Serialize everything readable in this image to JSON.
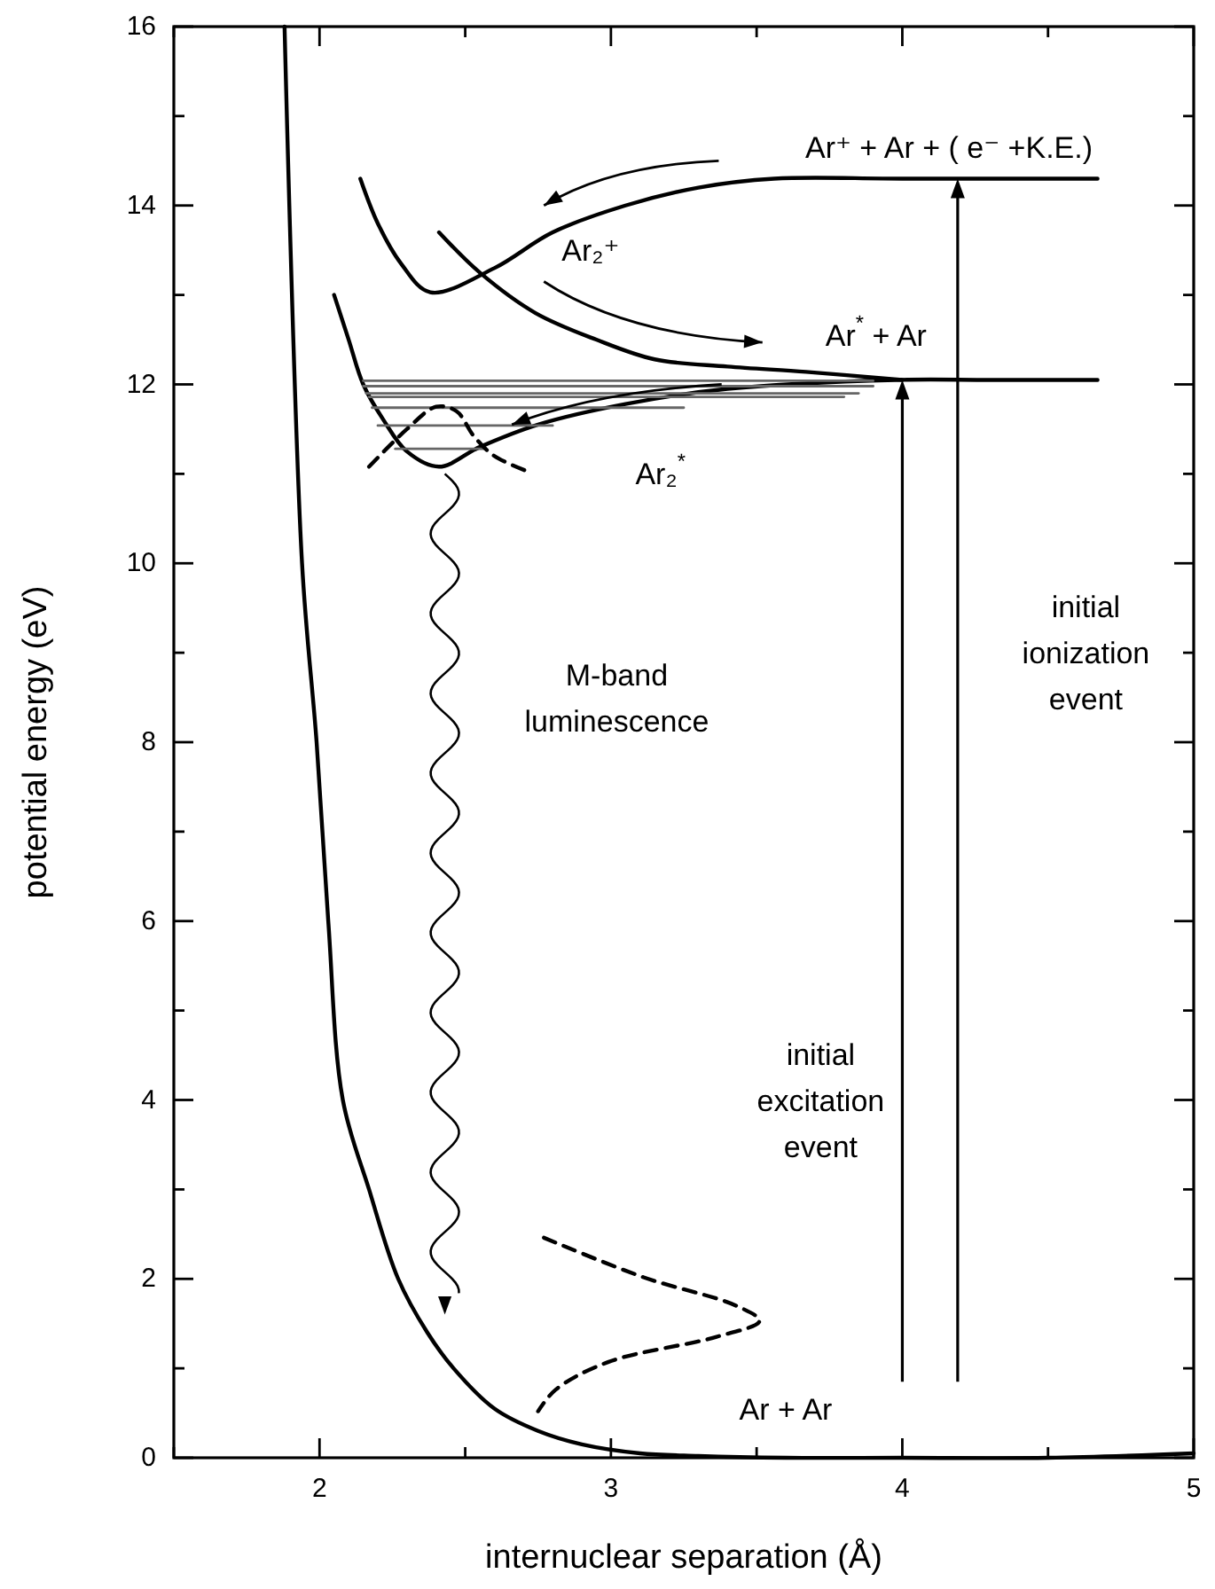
{
  "chart_data": {
    "type": "line",
    "xlabel": "internuclear separation (Å)",
    "ylabel": "potential energy (eV)",
    "xlim": [
      1.5,
      5
    ],
    "xticks": [
      {
        "value": 1.5,
        "label": null
      },
      2,
      {
        "value": 2.5,
        "label": null
      },
      3,
      {
        "value": 3.5,
        "label": null
      },
      4,
      {
        "value": 4.5,
        "label": null
      },
      5
    ],
    "ylim": [
      0,
      16
    ],
    "yticks": [
      0,
      {
        "value": 1,
        "label": null
      },
      2,
      {
        "value": 3,
        "label": null
      },
      4,
      {
        "value": 5,
        "label": null
      },
      6,
      {
        "value": 7,
        "label": null
      },
      8,
      {
        "value": 9,
        "label": null
      },
      10,
      {
        "value": 11,
        "label": null
      },
      12,
      {
        "value": 13,
        "label": null
      },
      14,
      {
        "value": 15,
        "label": null
      },
      16
    ],
    "grid": false,
    "line_style": "solid",
    "series": [
      {
        "color": "#000000",
        "x": [
          1.88,
          1.94,
          1.99,
          2.03,
          2.08,
          2.17,
          2.27,
          2.37,
          2.46,
          2.6,
          2.75,
          2.9,
          3.1,
          3.3,
          3.6,
          4.0,
          4.5,
          5.0
        ],
        "values": [
          16,
          10,
          8,
          6,
          4,
          3,
          2,
          1.4,
          1,
          0.55,
          0.3,
          0.15,
          0.05,
          0.02,
          0,
          0,
          0,
          0.05
        ]
      },
      {
        "color": "#000000",
        "x": [
          2.05,
          2.1,
          2.15,
          2.22,
          2.3,
          2.41,
          2.55,
          2.75,
          3.05,
          3.4,
          3.98,
          4.3,
          4.67
        ],
        "values": [
          13.0,
          12.5,
          12.0,
          11.6,
          11.25,
          11.08,
          11.3,
          11.55,
          11.78,
          11.95,
          12.05,
          12.05,
          12.05
        ]
      },
      {
        "color": "#000000",
        "x": [
          2.14,
          2.2,
          2.28,
          2.38,
          2.6,
          2.8,
          3.05,
          3.3,
          3.56,
          4.0,
          4.67
        ],
        "values": [
          14.3,
          13.8,
          13.35,
          13.03,
          13.3,
          13.7,
          14.0,
          14.2,
          14.3,
          14.3,
          14.3
        ]
      },
      {
        "color": "#000000",
        "x": [
          2.41,
          2.55,
          2.74,
          2.95,
          3.15,
          3.4,
          3.67,
          4.0
        ],
        "values": [
          13.7,
          13.25,
          12.8,
          12.5,
          12.28,
          12.2,
          12.14,
          12.05
        ]
      },
      {
        "color": "#666666",
        "x": [
          2.15,
          3.9
        ],
        "values": [
          12.04,
          12.04
        ]
      },
      {
        "color": "#666666",
        "x": [
          2.15,
          3.9
        ],
        "values": [
          11.98,
          11.98
        ]
      },
      {
        "color": "#666666",
        "x": [
          2.16,
          3.85
        ],
        "values": [
          11.9,
          11.9
        ]
      },
      {
        "color": "#666666",
        "x": [
          2.17,
          3.8
        ],
        "values": [
          11.86,
          11.86
        ]
      },
      {
        "color": "#666666",
        "x": [
          2.18,
          3.25
        ],
        "values": [
          11.74,
          11.74
        ]
      },
      {
        "color": "#666666",
        "x": [
          2.2,
          2.8
        ],
        "values": [
          11.54,
          11.54
        ]
      },
      {
        "color": "#666666",
        "x": [
          2.26,
          2.57
        ],
        "values": [
          11.28,
          11.28
        ]
      },
      {
        "color": "#000000",
        "line_style": "dashed",
        "x": [
          2.17,
          2.3,
          2.4,
          2.47,
          2.53,
          2.6,
          2.72
        ],
        "values": [
          11.08,
          11.5,
          11.75,
          11.7,
          11.42,
          11.2,
          11.02
        ]
      },
      {
        "color": "#000000",
        "line_style": "dashed",
        "x": [
          2.77,
          3.11,
          3.43,
          3.51,
          3.36,
          2.99,
          2.81,
          2.75
        ],
        "values": [
          2.46,
          2.02,
          1.7,
          1.53,
          1.35,
          1.07,
          0.76,
          0.52
        ]
      }
    ],
    "annotations": [
      "Ar⁺ + Ar + ( e⁻ +K.E.)",
      "Ar₂⁺",
      "Ar$^{*}$ + Ar",
      "Ar₂$^{*}$",
      "M-band\nluminescence",
      "initial\nionization\nevent",
      "initial\nexcitation\nevent",
      "Ar + Ar"
    ]
  }
}
